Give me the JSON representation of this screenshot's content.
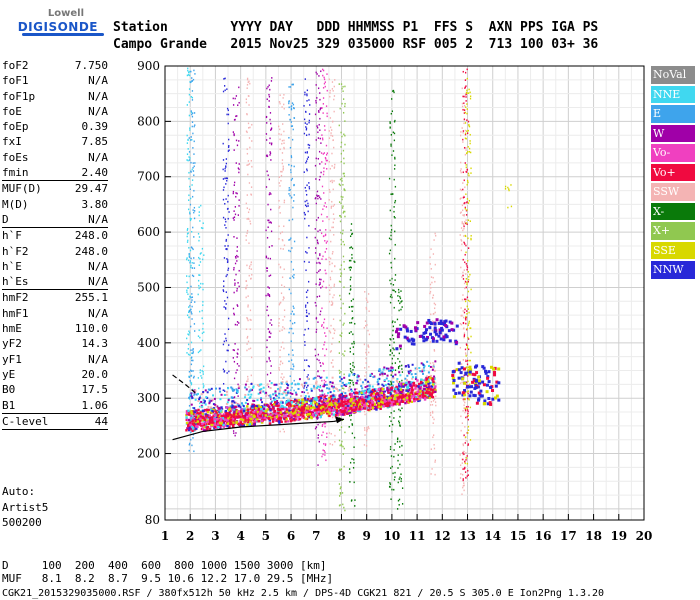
{
  "logo": {
    "line1": "Lowell",
    "line2": "DIGISONDE"
  },
  "header": {
    "row1": "Station        YYYY DAY   DDD HHMMSS P1  FFS S  AXN PPS IGA PS",
    "row2": "Campo Grande   2015 Nov25 329 035000 RSF 005 2  713 100 03+ 36"
  },
  "params": {
    "group1": [
      {
        "k": "foF2",
        "v": "7.750"
      },
      {
        "k": "foF1",
        "v": "N/A"
      },
      {
        "k": "foF1p",
        "v": "N/A"
      },
      {
        "k": "foE",
        "v": "N/A"
      },
      {
        "k": "foEp",
        "v": "0.39"
      },
      {
        "k": "fxI",
        "v": "7.85"
      },
      {
        "k": "foEs",
        "v": "N/A"
      },
      {
        "k": "fmin",
        "v": "2.40"
      }
    ],
    "group2": [
      {
        "k": "MUF(D)",
        "v": "29.47"
      },
      {
        "k": "M(D)",
        "v": "3.80"
      },
      {
        "k": "D",
        "v": "N/A"
      }
    ],
    "group3": [
      {
        "k": "h`F",
        "v": "248.0"
      },
      {
        "k": "h`F2",
        "v": "248.0"
      },
      {
        "k": "h`E",
        "v": "N/A"
      },
      {
        "k": "h`Es",
        "v": "N/A"
      }
    ],
    "group4": [
      {
        "k": "hmF2",
        "v": "255.1"
      },
      {
        "k": "hmF1",
        "v": "N/A"
      },
      {
        "k": "hmE",
        "v": "110.0"
      },
      {
        "k": "yF2",
        "v": "14.3"
      },
      {
        "k": "yF1",
        "v": "N/A"
      },
      {
        "k": "yE",
        "v": "20.0"
      },
      {
        "k": "B0",
        "v": "17.5"
      },
      {
        "k": "B1",
        "v": "1.06"
      }
    ],
    "group5": [
      {
        "k": "C-level",
        "v": "44"
      }
    ]
  },
  "auto": {
    "l1": "Auto:",
    "l2": "Artist5",
    "l3": "500200"
  },
  "legend": [
    {
      "label": "NoVal",
      "color": "#8c8c8c"
    },
    {
      "label": "NNE",
      "color": "#40d8f0"
    },
    {
      "label": "E",
      "color": "#3ea4ec"
    },
    {
      "label": "W",
      "color": "#a000a8"
    },
    {
      "label": "Vo-",
      "color": "#f040c0"
    },
    {
      "label": "Vo+",
      "color": "#f00a40"
    },
    {
      "label": "SSW",
      "color": "#f4b4b4"
    },
    {
      "label": "X-",
      "color": "#0a7a0a"
    },
    {
      "label": "X+",
      "color": "#90c850"
    },
    {
      "label": "SSE",
      "color": "#d8d800"
    },
    {
      "label": "NNW",
      "color": "#2828d8"
    }
  ],
  "bottom": {
    "d_row": "D     100  200  400  600  800 1000 1500 3000 [km]",
    "muf_row": "MUF   8.1  8.2  8.7  9.5 10.6 12.2 17.0 29.5 [MHz]",
    "footer": "CGK21_2015329035000.RSF / 380fx512h 50 kHz 2.5 km / DPS-4D CGK21 821 / 20.5 S 305.0 E Ion2Png 1.3.20"
  },
  "chart_data": {
    "type": "scatter",
    "xlim": [
      1,
      20
    ],
    "ylim": [
      80,
      900
    ],
    "x_ticks": [
      1,
      2,
      3,
      4,
      5,
      6,
      7,
      8,
      9,
      10,
      11,
      12,
      13,
      14,
      15,
      16,
      17,
      18,
      19,
      20
    ],
    "x_tick_labels": [
      "1",
      "2",
      "3",
      "4",
      "5",
      "6",
      "7",
      "8",
      "9",
      "10",
      "11",
      "12",
      "13",
      "14",
      "15",
      "16",
      "17",
      "18",
      "19",
      "20"
    ],
    "y_ticks": [
      80,
      200,
      300,
      400,
      500,
      600,
      700,
      800,
      900
    ],
    "y_tick_labels": [
      "80",
      "200",
      "300",
      "400",
      "500",
      "600",
      "700",
      "800",
      "900"
    ],
    "grid": true,
    "trace_o": [
      [
        1.8,
        262
      ],
      [
        2.5,
        262
      ],
      [
        3,
        266
      ],
      [
        4,
        270
      ],
      [
        5,
        274
      ],
      [
        6,
        280
      ],
      [
        7,
        286
      ],
      [
        8,
        291
      ],
      [
        9,
        298
      ],
      [
        10,
        306
      ],
      [
        11,
        316
      ],
      [
        11.7,
        324
      ]
    ],
    "trace_o_strong": [
      [
        1.9,
        258
      ],
      [
        3,
        263
      ],
      [
        4,
        266
      ],
      [
        5,
        270
      ],
      [
        6,
        276
      ],
      [
        7,
        282
      ],
      [
        8,
        287
      ],
      [
        9,
        292
      ],
      [
        10,
        298
      ],
      [
        11,
        306
      ],
      [
        11.6,
        312
      ]
    ],
    "trace_w": [
      [
        1.9,
        285
      ],
      [
        3,
        290
      ],
      [
        4,
        296
      ],
      [
        5,
        300
      ],
      [
        6,
        305
      ],
      [
        7,
        310
      ],
      [
        8,
        315
      ],
      [
        9,
        322
      ],
      [
        10,
        330
      ],
      [
        11,
        337
      ],
      [
        11.7,
        344
      ]
    ],
    "trace_nnw_high": [
      [
        10.1,
        410
      ],
      [
        10.5,
        415
      ],
      [
        11,
        420
      ],
      [
        11.5,
        425
      ],
      [
        12,
        425
      ],
      [
        12.6,
        418
      ]
    ],
    "trace_nnw_low": [
      [
        12.3,
        335
      ],
      [
        12.8,
        330
      ],
      [
        13.3,
        328
      ],
      [
        13.8,
        326
      ],
      [
        14.2,
        325
      ]
    ],
    "profile_solid": [
      [
        1.3,
        225
      ],
      [
        2.5,
        240
      ],
      [
        4,
        248
      ],
      [
        5.5,
        252
      ],
      [
        6.5,
        255
      ],
      [
        7.7,
        258
      ]
    ],
    "profile_dashed": [
      [
        1.3,
        342
      ],
      [
        1.8,
        325
      ],
      [
        2.2,
        310
      ]
    ],
    "arrow_tip": [
      8.1,
      262
    ],
    "vertical_streaks": [
      {
        "x": 1.95,
        "y0": 260,
        "y1": 900,
        "color": "#40d8f0"
      },
      {
        "x": 2.05,
        "y0": 200,
        "y1": 900,
        "color": "#3ea4ec"
      },
      {
        "x": 2.4,
        "y0": 250,
        "y1": 650,
        "color": "#40d8f0"
      },
      {
        "x": 3.4,
        "y0": 300,
        "y1": 880,
        "color": "#2828d8"
      },
      {
        "x": 3.8,
        "y0": 230,
        "y1": 880,
        "color": "#a000a8"
      },
      {
        "x": 4.3,
        "y0": 260,
        "y1": 880,
        "color": "#f4b4b4"
      },
      {
        "x": 5.1,
        "y0": 280,
        "y1": 880,
        "color": "#a000a8"
      },
      {
        "x": 5.6,
        "y0": 240,
        "y1": 860,
        "color": "#f4b4b4"
      },
      {
        "x": 6.0,
        "y0": 270,
        "y1": 880,
        "color": "#3ea4ec"
      },
      {
        "x": 6.6,
        "y0": 300,
        "y1": 880,
        "color": "#2828d8"
      },
      {
        "x": 7.05,
        "y0": 180,
        "y1": 900,
        "color": "#a000a8"
      },
      {
        "x": 7.3,
        "y0": 180,
        "y1": 900,
        "color": "#f040c0"
      },
      {
        "x": 7.6,
        "y0": 200,
        "y1": 880,
        "color": "#f4b4b4"
      },
      {
        "x": 8.0,
        "y0": 90,
        "y1": 880,
        "color": "#90c850"
      },
      {
        "x": 8.4,
        "y0": 90,
        "y1": 620,
        "color": "#0a7a0a"
      },
      {
        "x": 9.0,
        "y0": 200,
        "y1": 500,
        "color": "#f4b4b4"
      },
      {
        "x": 10.0,
        "y0": 90,
        "y1": 860,
        "color": "#0a7a0a"
      },
      {
        "x": 10.3,
        "y0": 90,
        "y1": 500,
        "color": "#0a7a0a"
      },
      {
        "x": 11.6,
        "y0": 160,
        "y1": 600,
        "color": "#f4b4b4"
      },
      {
        "x": 12.8,
        "y0": 120,
        "y1": 900,
        "color": "#f4b4b4"
      },
      {
        "x": 12.9,
        "y0": 150,
        "y1": 900,
        "color": "#f00a40"
      },
      {
        "x": 13.0,
        "y0": 180,
        "y1": 880,
        "color": "#d8d800"
      },
      {
        "x": 14.6,
        "y0": 640,
        "y1": 690,
        "color": "#d8d800"
      }
    ]
  }
}
